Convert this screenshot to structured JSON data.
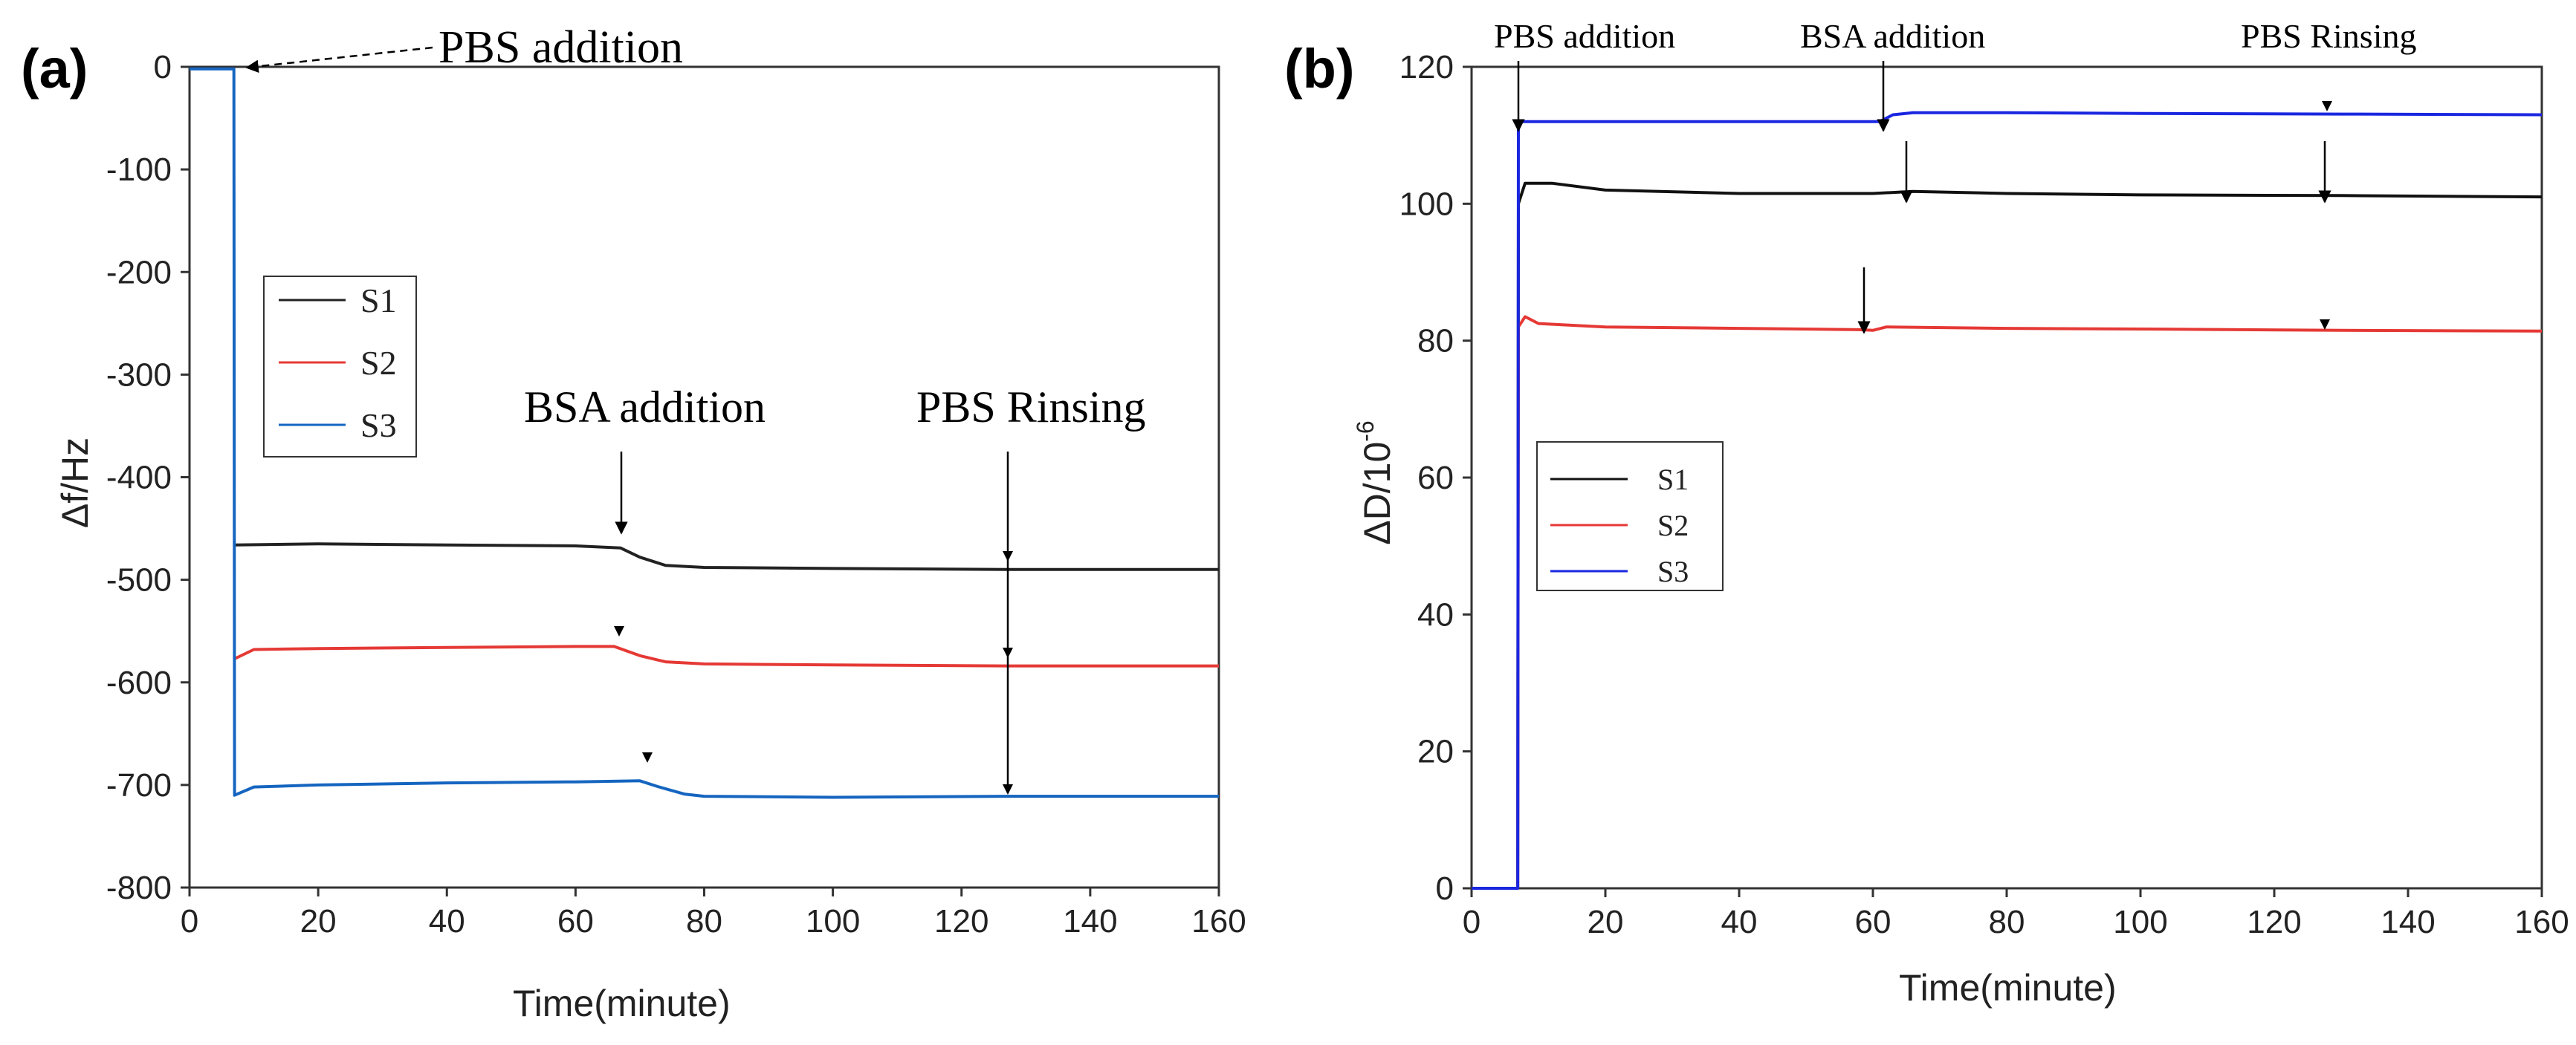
{
  "chart_data": [
    {
      "panel_label": "(a)",
      "type": "line",
      "xlabel": "Time(minute)",
      "ylabel": "Δf/Hz",
      "xlim": [
        0,
        160
      ],
      "ylim": [
        -800,
        0
      ],
      "xticks": [
        0,
        20,
        40,
        60,
        80,
        100,
        120,
        140,
        160
      ],
      "yticks": [
        0,
        -100,
        -200,
        -300,
        -400,
        -500,
        -600,
        -700,
        -800
      ],
      "legend": {
        "position": "upper-left",
        "entries": [
          "S1",
          "S2",
          "S3"
        ]
      },
      "series": [
        {
          "name": "S1",
          "color": "#222222",
          "points": [
            [
              7,
              -466
            ],
            [
              20,
              -465
            ],
            [
              40,
              -466
            ],
            [
              60,
              -467
            ],
            [
              67,
              -469
            ],
            [
              70,
              -478
            ],
            [
              74,
              -486
            ],
            [
              80,
              -488
            ],
            [
              100,
              -489
            ],
            [
              127,
              -490
            ],
            [
              160,
              -490
            ]
          ]
        },
        {
          "name": "S2",
          "color": "#e53935",
          "points": [
            [
              7,
              -577
            ],
            [
              10,
              -568
            ],
            [
              20,
              -567
            ],
            [
              40,
              -566
            ],
            [
              60,
              -565
            ],
            [
              66,
              -565
            ],
            [
              70,
              -574
            ],
            [
              74,
              -580
            ],
            [
              80,
              -582
            ],
            [
              100,
              -583
            ],
            [
              127,
              -584
            ],
            [
              160,
              -584
            ]
          ]
        },
        {
          "name": "S3",
          "color": "#1565c0",
          "points": [
            [
              0,
              -2
            ],
            [
              6.9,
              -2
            ],
            [
              7,
              -710
            ],
            [
              10,
              -702
            ],
            [
              20,
              -700
            ],
            [
              40,
              -698
            ],
            [
              60,
              -697
            ],
            [
              70,
              -696
            ],
            [
              73,
              -702
            ],
            [
              77,
              -709
            ],
            [
              80,
              -711
            ],
            [
              100,
              -712
            ],
            [
              127,
              -711
            ],
            [
              160,
              -711
            ]
          ]
        }
      ],
      "annotations": [
        {
          "text": "PBS addition",
          "x": 7,
          "y": 0
        },
        {
          "text": "BSA addition",
          "x": 67,
          "y": -469
        },
        {
          "text": "PBS Rinsing",
          "x": 127,
          "y": -711
        }
      ]
    },
    {
      "panel_label": "(b)",
      "type": "line",
      "xlabel": "Time(minute)",
      "ylabel": "ΔD/10",
      "ylabel_exp": "-6",
      "xlim": [
        0,
        160
      ],
      "ylim": [
        0,
        120
      ],
      "xticks": [
        0,
        20,
        40,
        60,
        80,
        100,
        120,
        140,
        160
      ],
      "yticks": [
        0,
        20,
        40,
        60,
        80,
        100,
        120
      ],
      "legend": {
        "position": "middle-left",
        "entries": [
          "S1",
          "S2",
          "S3"
        ]
      },
      "series": [
        {
          "name": "S1",
          "color": "#111111",
          "points": [
            [
              0,
              0
            ],
            [
              6.9,
              0
            ],
            [
              7,
              100
            ],
            [
              8,
              103
            ],
            [
              12,
              103
            ],
            [
              20,
              102
            ],
            [
              40,
              101.5
            ],
            [
              60,
              101.5
            ],
            [
              66,
              101.8
            ],
            [
              80,
              101.5
            ],
            [
              100,
              101.3
            ],
            [
              130,
              101.2
            ],
            [
              160,
              101
            ]
          ]
        },
        {
          "name": "S2",
          "color": "#e53935",
          "points": [
            [
              0,
              0
            ],
            [
              6.9,
              0
            ],
            [
              7,
              82
            ],
            [
              8,
              83.5
            ],
            [
              10,
              82.5
            ],
            [
              20,
              82
            ],
            [
              40,
              81.8
            ],
            [
              58,
              81.6
            ],
            [
              60,
              81.5
            ],
            [
              62,
              82
            ],
            [
              80,
              81.8
            ],
            [
              100,
              81.7
            ],
            [
              130,
              81.5
            ],
            [
              160,
              81.4
            ]
          ]
        },
        {
          "name": "S3",
          "color": "#1a27e0",
          "points": [
            [
              0,
              0
            ],
            [
              6.9,
              0
            ],
            [
              7,
              112
            ],
            [
              10,
              112
            ],
            [
              30,
              112
            ],
            [
              50,
              112
            ],
            [
              61,
              112
            ],
            [
              63,
              113
            ],
            [
              66,
              113.3
            ],
            [
              80,
              113.3
            ],
            [
              100,
              113.2
            ],
            [
              130,
              113.1
            ],
            [
              160,
              113
            ]
          ]
        }
      ],
      "annotations": [
        {
          "text": "PBS addition",
          "x": 7,
          "y": 112
        },
        {
          "text": "BSA addition",
          "x": 61,
          "y": 112
        },
        {
          "text": "PBS Rinsing",
          "x": 130,
          "y": 113
        }
      ]
    }
  ]
}
